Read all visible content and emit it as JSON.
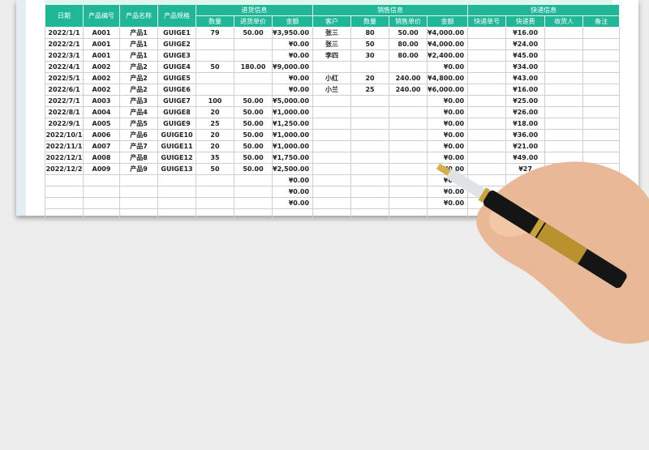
{
  "header": {
    "date": "日期",
    "code": "产品编号",
    "name": "产品名称",
    "spec": "产品规格",
    "purchase_group": "进货信息",
    "sales_group": "销售信息",
    "express_group": "快递信息",
    "p_qty": "数量",
    "p_price": "进货单价",
    "p_amount": "金额",
    "customer": "客户",
    "s_qty": "数量",
    "s_price": "销售单价",
    "s_amount": "金额",
    "tracking": "快递单号",
    "fee": "快递费",
    "receiver": "收货人",
    "note": "备注"
  },
  "rows": [
    [
      "2022/1/1",
      "A001",
      "产品1",
      "GUIGE1",
      "79",
      "50.00",
      "¥3,950.00",
      "张三",
      "80",
      "50.00",
      "¥4,000.00",
      "",
      "¥16.00",
      "",
      ""
    ],
    [
      "2022/2/1",
      "A001",
      "产品1",
      "GUIGE2",
      "",
      "",
      "¥0.00",
      "张三",
      "50",
      "80.00",
      "¥4,000.00",
      "",
      "¥24.00",
      "",
      ""
    ],
    [
      "2022/3/1",
      "A001",
      "产品1",
      "GUIGE3",
      "",
      "",
      "¥0.00",
      "李四",
      "30",
      "80.00",
      "¥2,400.00",
      "",
      "¥45.00",
      "",
      ""
    ],
    [
      "2022/4/1",
      "A002",
      "产品2",
      "GUIGE4",
      "50",
      "180.00",
      "¥9,000.00",
      "",
      "",
      "",
      "¥0.00",
      "",
      "¥34.00",
      "",
      ""
    ],
    [
      "2022/5/1",
      "A002",
      "产品2",
      "GUIGE5",
      "",
      "",
      "¥0.00",
      "小红",
      "20",
      "240.00",
      "¥4,800.00",
      "",
      "¥43.00",
      "",
      ""
    ],
    [
      "2022/6/1",
      "A002",
      "产品2",
      "GUIGE6",
      "",
      "",
      "¥0.00",
      "小兰",
      "25",
      "240.00",
      "¥6,000.00",
      "",
      "¥16.00",
      "",
      ""
    ],
    [
      "2022/7/1",
      "A003",
      "产品3",
      "GUIGE7",
      "100",
      "50.00",
      "¥5,000.00",
      "",
      "",
      "",
      "¥0.00",
      "",
      "¥25.00",
      "",
      ""
    ],
    [
      "2022/8/1",
      "A004",
      "产品4",
      "GUIGE8",
      "20",
      "50.00",
      "¥1,000.00",
      "",
      "",
      "",
      "¥0.00",
      "",
      "¥26.00",
      "",
      ""
    ],
    [
      "2022/9/1",
      "A005",
      "产品5",
      "GUIGE9",
      "25",
      "50.00",
      "¥1,250.00",
      "",
      "",
      "",
      "¥0.00",
      "",
      "¥18.00",
      "",
      ""
    ],
    [
      "2022/10/1",
      "A006",
      "产品6",
      "GUIGE10",
      "20",
      "50.00",
      "¥1,000.00",
      "",
      "",
      "",
      "¥0.00",
      "",
      "¥36.00",
      "",
      ""
    ],
    [
      "2022/11/1",
      "A007",
      "产品7",
      "GUIGE11",
      "20",
      "50.00",
      "¥1,000.00",
      "",
      "",
      "",
      "¥0.00",
      "",
      "¥21.00",
      "",
      ""
    ],
    [
      "2022/12/1",
      "A008",
      "产品8",
      "GUIGE12",
      "35",
      "50.00",
      "¥1,750.00",
      "",
      "",
      "",
      "¥0.00",
      "",
      "¥49.00",
      "",
      ""
    ],
    [
      "2022/12/2",
      "A009",
      "产品9",
      "GUIGE13",
      "50",
      "50.00",
      "¥2,500.00",
      "",
      "",
      "",
      "¥0.00",
      "",
      "¥27",
      "",
      ""
    ],
    [
      "",
      "",
      "",
      "",
      "",
      "",
      "¥0.00",
      "",
      "",
      "",
      "¥0.00",
      "",
      "",
      "",
      ""
    ],
    [
      "",
      "",
      "",
      "",
      "",
      "",
      "¥0.00",
      "",
      "",
      "",
      "¥0.00",
      "",
      "",
      "",
      ""
    ],
    [
      "",
      "",
      "",
      "",
      "",
      "",
      "¥0.00",
      "",
      "",
      "",
      "¥0.00",
      "",
      "",
      "",
      ""
    ],
    [
      "",
      "",
      "",
      "",
      "",
      "",
      "",
      "",
      "",
      "",
      "",
      "",
      "",
      "",
      ""
    ]
  ],
  "colors": {
    "header": "#20b797",
    "background": "#ededed"
  }
}
